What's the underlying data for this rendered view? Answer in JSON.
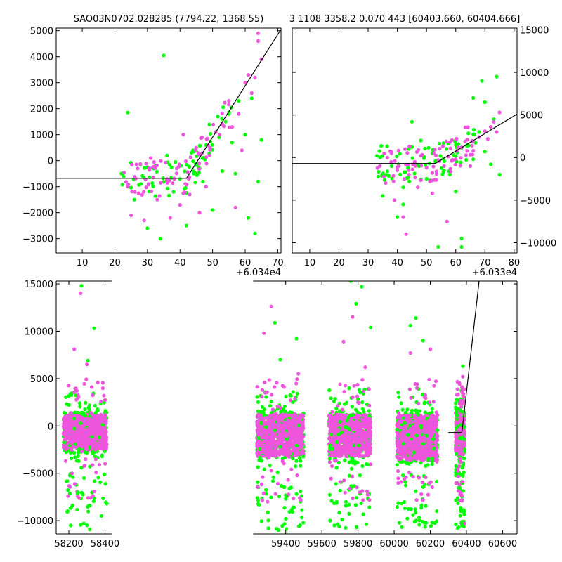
{
  "titles": {
    "left": "SAO03N0702.028285 (7794.22, 1368.55)",
    "right": "3 1108 3358.2 0.070 443 [60403.660, 60404.666]"
  },
  "colors": {
    "series_a": "#00ff00",
    "series_b": "#ee55dd",
    "model": "#000000"
  },
  "chart_data": [
    {
      "id": "top-left",
      "type": "scatter",
      "title": "SAO03N0702.028285 (7794.22, 1368.55)",
      "xlim": [
        2,
        71
      ],
      "ylim": [
        -3550,
        5100
      ],
      "xticks": [
        10,
        20,
        30,
        40,
        50,
        60,
        70
      ],
      "yticks": [
        -3000,
        -2000,
        -1000,
        0,
        1000,
        2000,
        3000,
        4000,
        5000
      ],
      "x_offset_label": "+6.034e4",
      "model_line": {
        "x": [
          2,
          42,
          71
        ],
        "y": [
          -680,
          -680,
          5050
        ]
      },
      "series": [
        {
          "color": "#00ff00",
          "points": [
            [
              24,
              1850
            ],
            [
              35,
              4050
            ],
            [
              22,
              -500
            ],
            [
              26,
              -1500
            ],
            [
              28,
              -900
            ],
            [
              30,
              -2600
            ],
            [
              32,
              -300
            ],
            [
              34,
              -3000
            ],
            [
              36,
              200
            ],
            [
              38,
              -1200
            ],
            [
              40,
              -700
            ],
            [
              42,
              -2500
            ],
            [
              44,
              400
            ],
            [
              46,
              -300
            ],
            [
              48,
              600
            ],
            [
              50,
              -1900
            ],
            [
              52,
              900
            ],
            [
              54,
              1500
            ],
            [
              56,
              700
            ],
            [
              57,
              -500
            ],
            [
              58,
              2300
            ],
            [
              60,
              1000
            ],
            [
              61,
              -2200
            ],
            [
              62,
              2400
            ],
            [
              63,
              -2800
            ],
            [
              64,
              -800
            ],
            [
              65,
              800
            ],
            [
              55,
              1800
            ],
            [
              53,
              -400
            ],
            [
              47,
              -800
            ]
          ]
        },
        {
          "color": "#ee55dd",
          "points": [
            [
              24,
              -1000
            ],
            [
              27,
              -300
            ],
            [
              29,
              -2300
            ],
            [
              31,
              100
            ],
            [
              33,
              -1500
            ],
            [
              37,
              -2200
            ],
            [
              39,
              -300
            ],
            [
              41,
              1000
            ],
            [
              43,
              -1300
            ],
            [
              45,
              500
            ],
            [
              49,
              200
            ],
            [
              51,
              1100
            ],
            [
              53,
              1400
            ],
            [
              55,
              2300
            ],
            [
              56,
              1300
            ],
            [
              58,
              1800
            ],
            [
              60,
              3000
            ],
            [
              61,
              3300
            ],
            [
              62,
              2600
            ],
            [
              63,
              3200
            ],
            [
              64,
              4600
            ],
            [
              65,
              3900
            ],
            [
              64,
              4900
            ],
            [
              59,
              400
            ],
            [
              57,
              -1800
            ],
            [
              48,
              -1000
            ],
            [
              46,
              -2000
            ],
            [
              40,
              -1700
            ],
            [
              36,
              -700
            ],
            [
              25,
              -2100
            ]
          ]
        }
      ]
    },
    {
      "id": "top-right",
      "type": "scatter",
      "title": "3 1108 3358.2 0.070 443 [60403.660, 60404.666]",
      "xlim": [
        4,
        81
      ],
      "ylim": [
        -11200,
        15200
      ],
      "xticks": [
        10,
        20,
        30,
        40,
        50,
        60,
        70,
        80
      ],
      "yticks": [
        -10000,
        -5000,
        0,
        5000,
        10000,
        15000
      ],
      "x_offset_label": "+6.033e4",
      "model_line": {
        "x": [
          4,
          53,
          81
        ],
        "y": [
          -700,
          -700,
          5100
        ]
      },
      "series": [
        {
          "color": "#00ff00",
          "points": [
            [
              33,
              200
            ],
            [
              35,
              -4500
            ],
            [
              38,
              -1000
            ],
            [
              40,
              -7000
            ],
            [
              42,
              -5500
            ],
            [
              44,
              1000
            ],
            [
              46,
              -800
            ],
            [
              48,
              2000
            ],
            [
              50,
              -2500
            ],
            [
              52,
              500
            ],
            [
              54,
              -10500
            ],
            [
              56,
              -1500
            ],
            [
              58,
              -2000
            ],
            [
              60,
              -4000
            ],
            [
              62,
              -9500
            ],
            [
              64,
              1500
            ],
            [
              66,
              -200
            ],
            [
              68,
              3000
            ],
            [
              69,
              9000
            ],
            [
              70,
              700
            ],
            [
              72,
              -800
            ],
            [
              73,
              4500
            ],
            [
              74,
              9500
            ],
            [
              75,
              -2000
            ],
            [
              70,
              6500
            ],
            [
              66,
              7000
            ],
            [
              62,
              -10500
            ],
            [
              45,
              4200
            ],
            [
              42,
              -3500
            ],
            [
              60,
              1500
            ]
          ]
        },
        {
          "color": "#ee55dd",
          "points": [
            [
              34,
              -1000
            ],
            [
              36,
              -3000
            ],
            [
              38,
              500
            ],
            [
              40,
              -1500
            ],
            [
              42,
              -7000
            ],
            [
              43,
              -9000
            ],
            [
              44,
              -2000
            ],
            [
              46,
              -500
            ],
            [
              48,
              200
            ],
            [
              50,
              -1200
            ],
            [
              52,
              -1800
            ],
            [
              54,
              -300
            ],
            [
              56,
              -1000
            ],
            [
              58,
              1800
            ],
            [
              60,
              -200
            ],
            [
              62,
              1200
            ],
            [
              64,
              2100
            ],
            [
              66,
              800
            ],
            [
              68,
              2400
            ],
            [
              70,
              3100
            ],
            [
              72,
              3600
            ],
            [
              73,
              4200
            ],
            [
              74,
              3000
            ],
            [
              75,
              5300
            ],
            [
              71,
              2200
            ],
            [
              65,
              -1000
            ],
            [
              57,
              -7500
            ],
            [
              52,
              -4200
            ],
            [
              47,
              -3500
            ],
            [
              39,
              -5000
            ]
          ]
        }
      ]
    },
    {
      "id": "bottom",
      "type": "scatter",
      "xlim": [
        58130,
        60680
      ],
      "ylim": [
        -11400,
        15300
      ],
      "xticks": [
        58200,
        58400,
        59400,
        59600,
        59800,
        60000,
        60200,
        60400,
        60600
      ],
      "yticks": [
        -10000,
        -5000,
        0,
        5000,
        10000,
        15000
      ],
      "gap": [
        58440,
        59220
      ],
      "clusters": [
        {
          "x": [
            58170,
            58410
          ],
          "spread_b": [
            -2500,
            1200
          ]
        },
        {
          "x": [
            59240,
            59500
          ],
          "spread_b": [
            -3200,
            1200
          ]
        },
        {
          "x": [
            59640,
            59870
          ],
          "spread_b": [
            -3200,
            1200
          ]
        },
        {
          "x": [
            60015,
            60240
          ],
          "spread_b": [
            -3600,
            1200
          ]
        },
        {
          "x": [
            60340,
            60390
          ],
          "spread_b": [
            -3000,
            1500
          ]
        }
      ],
      "outliers_a": [
        [
          58270,
          14800
        ],
        [
          58340,
          10300
        ],
        [
          58305,
          6900
        ],
        [
          58250,
          -7000
        ],
        [
          58380,
          -9500
        ],
        [
          59340,
          10900
        ],
        [
          59370,
          7000
        ],
        [
          59400,
          -9800
        ],
        [
          59460,
          9200
        ],
        [
          59430,
          -6500
        ],
        [
          59760,
          15300
        ],
        [
          59820,
          14700
        ],
        [
          59870,
          10400
        ],
        [
          59790,
          12900
        ],
        [
          59750,
          -8300
        ],
        [
          60120,
          11400
        ],
        [
          60090,
          10600
        ],
        [
          60160,
          9000
        ],
        [
          60060,
          -8700
        ],
        [
          60210,
          -10200
        ],
        [
          60380,
          6300
        ],
        [
          60370,
          -9000
        ],
        [
          59360,
          -11000
        ],
        [
          58210,
          -10500
        ]
      ],
      "outliers_b": [
        [
          58265,
          14000
        ],
        [
          58230,
          8100
        ],
        [
          58300,
          6500
        ],
        [
          58360,
          4600
        ],
        [
          59320,
          12600
        ],
        [
          59280,
          9800
        ],
        [
          59470,
          5500
        ],
        [
          59770,
          11500
        ],
        [
          59720,
          8900
        ],
        [
          59840,
          6200
        ],
        [
          60090,
          7700
        ],
        [
          60200,
          8100
        ],
        [
          60380,
          5200
        ],
        [
          60390,
          -10300
        ],
        [
          58320,
          -7600
        ],
        [
          59300,
          -8000
        ],
        [
          59810,
          -7000
        ],
        [
          60150,
          -7200
        ]
      ],
      "model_line": {
        "x": [
          60300,
          60375,
          60470
        ],
        "y": [
          -700,
          -700,
          15300
        ]
      }
    }
  ]
}
